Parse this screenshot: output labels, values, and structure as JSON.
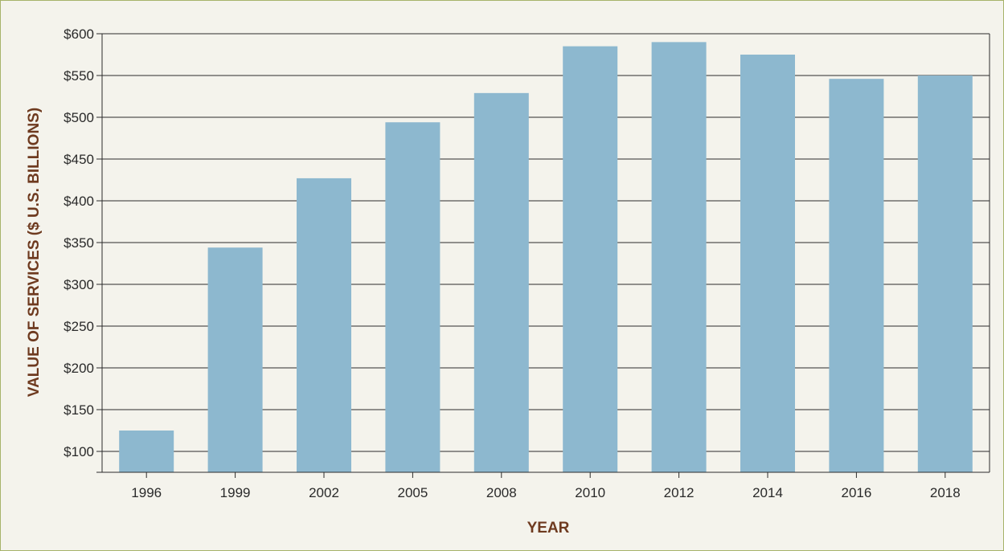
{
  "chart_data": {
    "type": "bar",
    "categories": [
      "1996",
      "1999",
      "2002",
      "2005",
      "2008",
      "2010",
      "2012",
      "2014",
      "2016",
      "2018"
    ],
    "values": [
      125,
      344,
      427,
      494,
      529,
      585,
      590,
      575,
      546,
      550
    ],
    "xlabel": "YEAR",
    "ylabel": "VALUE OF SERVICES ($ U.S. BILLIONS)",
    "ylim": [
      75,
      600
    ],
    "yticks": [
      100,
      150,
      200,
      250,
      300,
      350,
      400,
      450,
      500,
      550,
      600
    ],
    "ytick_labels": [
      "$100",
      "$150",
      "$200",
      "$250",
      "$300",
      "$350",
      "$400",
      "$450",
      "$500",
      "$550",
      "$600"
    ],
    "grid": "horizontal",
    "bar_color": "#8db8cf",
    "axis_title_color": "#6e3a1f",
    "background_color": "#f4f3ec"
  }
}
